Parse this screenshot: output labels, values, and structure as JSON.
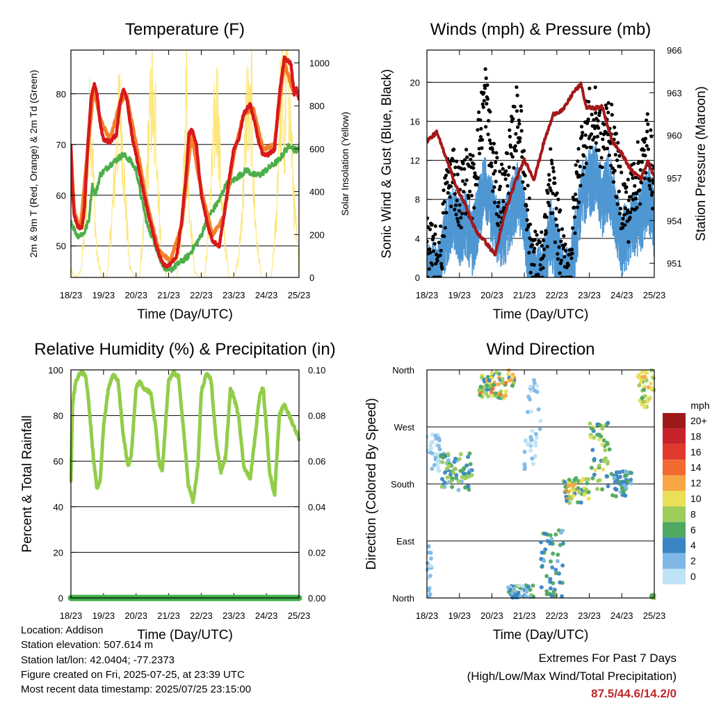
{
  "x_ticks": [
    "18/23",
    "19/23",
    "20/23",
    "21/23",
    "22/23",
    "23/23",
    "24/23",
    "25/23"
  ],
  "colors": {
    "temp2m": "#d7191c",
    "temp9m": "#f4802a",
    "dewpoint": "#4daf4a",
    "solar": "#fde36a",
    "wind": "#4f97d3",
    "gust": "#000000",
    "pressure": "#a3191b",
    "rh": "#92cd4a",
    "precip": "#3fae49"
  },
  "chart_data": [
    {
      "id": "temperature",
      "type": "line",
      "title": "Temperature (F)",
      "xlabel": "Time (Day/UTC)",
      "ylabel": "2m & 9m T (Red, Orange) & 2m Td (Green)",
      "ylabel_right": "Solar Insolation (Yellow)",
      "ylim": [
        43.8,
        88.6
      ],
      "yticks": [
        50,
        60,
        70,
        80
      ],
      "ylim_right": [
        0,
        1060
      ],
      "yticks_right": [
        0,
        200,
        400,
        600,
        800,
        1000
      ],
      "x_days": [
        0,
        7
      ],
      "series": [
        {
          "key": "temp2m",
          "x": [
            0,
            0.04,
            0.1,
            0.2,
            0.3,
            0.35,
            0.42,
            0.52,
            0.62,
            0.72,
            0.8,
            0.9,
            1.0,
            1.2,
            1.4,
            1.5,
            1.62,
            1.72,
            1.82,
            1.92,
            2.0,
            2.15,
            2.35,
            2.5,
            2.62,
            2.72,
            2.82,
            2.95,
            3.05,
            3.25,
            3.4,
            3.55,
            3.62,
            3.72,
            3.85,
            4.0,
            4.2,
            4.35,
            4.55,
            4.7,
            4.85,
            5.0,
            5.15,
            5.3,
            5.5,
            5.65,
            5.78,
            5.9,
            6.05,
            6.25,
            6.4,
            6.55,
            6.75,
            6.85,
            6.92,
            7.0
          ],
          "y": [
            70,
            62,
            56,
            54,
            53.5,
            54,
            58,
            70,
            79,
            82,
            80,
            74,
            71,
            70.5,
            72,
            78,
            81,
            79,
            74,
            70,
            68,
            63,
            57,
            53,
            50,
            48,
            46.5,
            46,
            46.5,
            48,
            55,
            65,
            72,
            73,
            70,
            60,
            54,
            51,
            50,
            56,
            63,
            69,
            71,
            76,
            78,
            74,
            70,
            68,
            68,
            69,
            80,
            87,
            86,
            80,
            81,
            79
          ]
        },
        {
          "key": "temp9m",
          "x": [
            0,
            0.1,
            0.2,
            0.3,
            0.5,
            0.7,
            0.9,
            1.2,
            1.5,
            1.7,
            2.0,
            2.35,
            2.7,
            3.05,
            3.4,
            3.7,
            4.0,
            4.35,
            4.7,
            5.0,
            5.3,
            5.6,
            5.9,
            6.25,
            6.55,
            6.8,
            7.0
          ],
          "y": [
            69,
            57,
            55,
            54,
            68,
            81,
            75,
            71,
            78,
            80,
            70,
            58,
            49,
            47,
            54,
            72,
            61,
            52,
            56,
            68,
            76,
            77,
            69,
            70,
            86,
            81,
            80
          ]
        },
        {
          "key": "dewpoint",
          "x": [
            0,
            0.05,
            0.2,
            0.4,
            0.55,
            0.65,
            0.75,
            0.9,
            1.2,
            1.4,
            1.6,
            1.8,
            2.0,
            2.15,
            2.35,
            2.55,
            2.7,
            2.85,
            3.0,
            3.2,
            3.4,
            3.6,
            3.8,
            4.0,
            4.15,
            4.35,
            4.55,
            4.75,
            5.0,
            5.2,
            5.4,
            5.6,
            5.8,
            6.0,
            6.2,
            6.4,
            6.6,
            6.75,
            6.85,
            7.0
          ],
          "y": [
            55,
            54,
            52,
            52.5,
            55,
            62,
            60,
            64,
            66,
            67,
            68,
            67,
            65,
            60,
            54,
            51,
            48,
            46,
            45,
            46,
            47,
            48,
            50,
            52,
            55,
            57,
            59,
            62,
            63,
            64,
            65,
            64,
            64,
            65,
            66,
            67,
            69,
            70,
            69,
            69
          ]
        },
        {
          "key": "solar",
          "x": [
            0,
            0.15,
            0.3,
            0.45,
            0.55,
            0.6,
            0.65,
            0.72,
            0.8,
            0.95,
            1.1,
            1.25,
            1.4,
            1.5,
            1.55,
            1.6,
            1.68,
            1.8,
            1.95,
            2.1,
            2.25,
            2.4,
            2.5,
            2.55,
            2.6,
            2.7,
            2.8,
            2.95,
            3.1,
            3.25,
            3.4,
            3.5,
            3.55,
            3.6,
            3.7,
            3.8,
            3.95,
            4.1,
            4.25,
            4.4,
            4.5,
            4.55,
            4.6,
            4.7,
            4.85,
            5.0,
            5.15,
            5.3,
            5.4,
            5.5,
            5.55,
            5.6,
            5.7,
            5.85,
            6.0,
            6.15,
            6.3,
            6.4,
            6.5,
            6.55,
            6.6,
            6.7,
            6.85,
            7.0
          ],
          "y": [
            40,
            0,
            30,
            300,
            750,
            950,
            800,
            400,
            120,
            0,
            0,
            300,
            700,
            920,
            850,
            650,
            400,
            60,
            0,
            0,
            300,
            800,
            1000,
            700,
            900,
            400,
            80,
            0,
            0,
            0,
            300,
            700,
            1060,
            500,
            250,
            30,
            0,
            0,
            300,
            800,
            980,
            700,
            500,
            250,
            0,
            0,
            100,
            500,
            960,
            800,
            1000,
            500,
            200,
            0,
            0,
            0,
            300,
            900,
            1000,
            600,
            1060,
            1000,
            400,
            50
          ]
        }
      ]
    },
    {
      "id": "winds",
      "type": "line",
      "title": "Winds (mph) & Pressure (mb)",
      "xlabel": "Time (Day/UTC)",
      "ylabel": "Sonic Wind & Gust (Blue, Black)",
      "ylabel_right": "Station Pressure (Maroon)",
      "ylim": [
        0,
        23.3
      ],
      "yticks": [
        0,
        4,
        8,
        12,
        16,
        20
      ],
      "ylim_right": [
        950,
        966
      ],
      "yticks_right": [
        951,
        954,
        957,
        960,
        963,
        966
      ],
      "x_days": [
        0,
        7
      ],
      "series": [
        {
          "key": "gust",
          "x": [
            0,
            0.2,
            0.4,
            0.6,
            0.8,
            1.0,
            1.2,
            1.4,
            1.6,
            1.8,
            2.0,
            2.2,
            2.4,
            2.6,
            2.8,
            3.0,
            3.2,
            3.4,
            3.6,
            3.8,
            4.0,
            4.2,
            4.4,
            4.6,
            4.8,
            5.0,
            5.2,
            5.4,
            5.6,
            5.8,
            6.0,
            6.2,
            6.4,
            6.6,
            6.8,
            7.0
          ],
          "y": [
            3,
            2,
            1.5,
            9,
            11,
            8,
            10,
            9,
            14,
            19,
            12,
            8,
            9,
            13,
            17,
            11,
            3,
            1,
            2,
            10,
            6,
            1,
            1,
            9,
            14,
            16,
            16,
            14,
            16,
            12,
            8,
            7,
            10,
            11,
            14,
            9
          ]
        },
        {
          "key": "wind",
          "x": [
            0,
            0.2,
            0.4,
            0.6,
            0.8,
            1.0,
            1.2,
            1.4,
            1.6,
            1.8,
            2.0,
            2.2,
            2.4,
            2.6,
            2.8,
            3.0,
            3.2,
            3.4,
            3.6,
            3.8,
            4.0,
            4.2,
            4.4,
            4.6,
            4.8,
            5.0,
            5.2,
            5.4,
            5.6,
            5.8,
            6.0,
            6.2,
            6.4,
            6.6,
            6.8,
            7.0
          ],
          "y": [
            1,
            0.5,
            0.5,
            5,
            7,
            5,
            6,
            4,
            7,
            10,
            7,
            5,
            5,
            7,
            9,
            6,
            1,
            0,
            0.5,
            5,
            3,
            0,
            0,
            5,
            9,
            10,
            11,
            8,
            10,
            7,
            4,
            5,
            6,
            6,
            9,
            6
          ]
        },
        {
          "key": "pressure",
          "x": [
            0,
            0.3,
            0.6,
            0.9,
            1.2,
            1.5,
            1.8,
            2.1,
            2.4,
            2.7,
            3.0,
            3.3,
            3.6,
            3.9,
            4.2,
            4.5,
            4.75,
            4.9,
            5.1,
            5.4,
            5.7,
            6.0,
            6.3,
            6.6,
            6.8,
            7.0
          ],
          "y": [
            959.6,
            960.2,
            958.4,
            956.4,
            955,
            953.3,
            952.5,
            951.6,
            954.5,
            956.6,
            958.3,
            956.9,
            959.5,
            961.5,
            961.8,
            963,
            963.6,
            962,
            961.9,
            962,
            959.6,
            958.7,
            957.5,
            957,
            958.2,
            957.1
          ]
        }
      ]
    },
    {
      "id": "humidity",
      "type": "line",
      "title": "Relative Humidity (%) & Precipitation (in)",
      "xlabel": "Time (Day/UTC)",
      "ylabel": "Percent & Total Rainfall",
      "ylim": [
        0,
        100
      ],
      "yticks": [
        0,
        20,
        40,
        60,
        80,
        100
      ],
      "ylim_right": [
        0,
        0.1
      ],
      "yticks_right": [
        "0.00",
        "0.02",
        "0.04",
        "0.06",
        "0.08",
        "0.10"
      ],
      "x_days": [
        0,
        7
      ],
      "series": [
        {
          "key": "rh",
          "x": [
            0,
            0.05,
            0.15,
            0.3,
            0.45,
            0.55,
            0.7,
            0.8,
            0.9,
            1.0,
            1.15,
            1.3,
            1.45,
            1.6,
            1.75,
            1.85,
            2.0,
            2.1,
            2.25,
            2.45,
            2.6,
            2.7,
            2.8,
            2.9,
            3.0,
            3.15,
            3.3,
            3.45,
            3.6,
            3.75,
            3.9,
            4.0,
            4.15,
            4.3,
            4.45,
            4.6,
            4.75,
            4.9,
            5.0,
            5.15,
            5.3,
            5.5,
            5.65,
            5.8,
            5.9,
            6.0,
            6.1,
            6.25,
            6.4,
            6.55,
            6.7,
            6.85,
            7.0
          ],
          "y": [
            52,
            85,
            95,
            99,
            98,
            85,
            60,
            48,
            52,
            75,
            92,
            98,
            95,
            72,
            58,
            62,
            92,
            95,
            92,
            90,
            75,
            60,
            55,
            75,
            95,
            99,
            97,
            75,
            50,
            42,
            58,
            90,
            98,
            96,
            70,
            55,
            62,
            92,
            88,
            80,
            58,
            52,
            70,
            90,
            92,
            75,
            55,
            45,
            80,
            85,
            80,
            75,
            70
          ]
        },
        {
          "key": "precip",
          "x": [
            0,
            7
          ],
          "y": [
            0,
            0
          ]
        }
      ]
    },
    {
      "id": "direction",
      "type": "scatter",
      "title": "Wind Direction",
      "xlabel": "Time (Day/UTC)",
      "ylabel": "Direction (Colored By Speed)",
      "ytick_labels": [
        "North",
        "East",
        "South",
        "West",
        "North"
      ],
      "ylim": [
        0,
        360
      ],
      "colorbar": {
        "title": "mph",
        "labels": [
          "20+",
          "18",
          "16",
          "14",
          "12",
          "10",
          "8",
          "6",
          "4",
          "2",
          "0"
        ],
        "colors": [
          "#9e1a1a",
          "#c8232a",
          "#e1392e",
          "#f26a30",
          "#f9a646",
          "#e9df59",
          "#9ccc5a",
          "#4ea860",
          "#3a86c4",
          "#7fb8e6",
          "#bfe3f7"
        ]
      },
      "x_days": [
        0,
        7
      ],
      "clusters": [
        {
          "x": [
            0.0,
            0.4
          ],
          "y": [
            200,
            260
          ],
          "s": [
            0,
            3
          ]
        },
        {
          "x": [
            0.0,
            0.15
          ],
          "y": [
            0,
            100
          ],
          "s": [
            0,
            3
          ]
        },
        {
          "x": [
            0.4,
            1.4
          ],
          "y": [
            170,
            230
          ],
          "s": [
            2,
            9
          ]
        },
        {
          "x": [
            1.6,
            2.7
          ],
          "y": [
            315,
            360
          ],
          "s": [
            4,
            14
          ]
        },
        {
          "x": [
            2.5,
            3.3
          ],
          "y": [
            0,
            20
          ],
          "s": [
            0,
            8
          ]
        },
        {
          "x": [
            3.0,
            3.5
          ],
          "y": [
            200,
            360
          ],
          "s": [
            0,
            3
          ]
        },
        {
          "x": [
            3.5,
            4.2
          ],
          "y": [
            0,
            110
          ],
          "s": [
            2,
            7
          ]
        },
        {
          "x": [
            4.2,
            5.0
          ],
          "y": [
            150,
            190
          ],
          "s": [
            4,
            13
          ]
        },
        {
          "x": [
            5.0,
            5.7
          ],
          "y": [
            170,
            280
          ],
          "s": [
            3,
            10
          ]
        },
        {
          "x": [
            5.7,
            6.3
          ],
          "y": [
            160,
            200
          ],
          "s": [
            2,
            6
          ]
        },
        {
          "x": [
            6.5,
            7.0
          ],
          "y": [
            300,
            360
          ],
          "s": [
            6,
            12
          ]
        },
        {
          "x": [
            6.9,
            7.0
          ],
          "y": [
            0,
            5
          ],
          "s": [
            6,
            9
          ]
        }
      ]
    }
  ],
  "info": {
    "location": "Location: Addison",
    "elevation": "Station elevation: 507.614 m",
    "latlon": "Station lat/lon: 42.0404; -77.2373",
    "created": "Figure created on Fri, 2025-07-25, at 23:39 UTC",
    "recent": "Most recent data timestamp: 2025/07/25 23:15:00"
  },
  "extremes": {
    "title": "Extremes For Past 7 Days",
    "subtitle": "(High/Low/Max Wind/Total Precipitation)",
    "value": "87.5/44.6/14.2/0"
  }
}
